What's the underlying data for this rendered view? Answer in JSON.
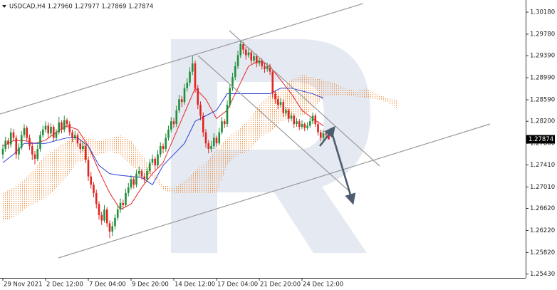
{
  "chart_data": {
    "type": "candlestick",
    "title": "USDCAD,H4  1.27960 1.27977 1.27869 1.27874",
    "up_color": "#1f8f3a",
    "down_color": "#e0241f",
    "ylim": [
      1.2536,
      1.304
    ],
    "yticks": [
      {
        "value": 1.3018,
        "label": "1.30180"
      },
      {
        "value": 1.2978,
        "label": "1.29780"
      },
      {
        "value": 1.2939,
        "label": "1.29390"
      },
      {
        "value": 1.2899,
        "label": "1.28990"
      },
      {
        "value": 1.2859,
        "label": "1.28590"
      },
      {
        "value": 1.282,
        "label": "1.28200"
      },
      {
        "value": 1.278,
        "label": "1.27800"
      },
      {
        "value": 1.2741,
        "label": "1.27410"
      },
      {
        "value": 1.2701,
        "label": "1.27010"
      },
      {
        "value": 1.2662,
        "label": "1.26620"
      },
      {
        "value": 1.2622,
        "label": "1.26220"
      },
      {
        "value": 1.2582,
        "label": "1.25820"
      },
      {
        "value": 1.2543,
        "label": "1.25430"
      }
    ],
    "last_price": {
      "value": 1.27874,
      "label": "1.27874"
    },
    "categories": [
      "29 Nov 2021",
      null,
      null,
      null,
      null,
      null,
      null,
      null,
      null,
      null,
      null,
      null,
      null,
      null,
      null,
      null,
      "2 Dec 12:00",
      null,
      null,
      null,
      null,
      null,
      null,
      null,
      null,
      null,
      null,
      null,
      null,
      null,
      null,
      null,
      "7 Dec 04:00",
      null,
      null,
      null,
      null,
      null,
      null,
      null,
      null,
      null,
      null,
      null,
      null,
      null,
      null,
      null,
      "9 Dec 20:00",
      null,
      null,
      null,
      null,
      null,
      null,
      null,
      null,
      null,
      null,
      null,
      null,
      null,
      null,
      null,
      "14 Dec 12:00",
      null,
      null,
      null,
      null,
      null,
      null,
      null,
      null,
      null,
      null,
      null,
      null,
      null,
      null,
      null,
      "17 Dec 04:00",
      null,
      null,
      null,
      null,
      null,
      null,
      null,
      null,
      null,
      null,
      null,
      null,
      null,
      null,
      null,
      "21 Dec 20:00",
      null,
      null,
      null,
      null,
      null,
      null,
      null,
      null,
      null,
      null,
      null,
      null,
      null,
      null,
      null,
      "24 Dec 12:00",
      null,
      null,
      null,
      null,
      null,
      null,
      null,
      null,
      null,
      null
    ],
    "ohlc": [
      [
        1.276,
        1.2778,
        1.2752,
        1.277
      ],
      [
        1.277,
        1.2792,
        1.2765,
        1.2785
      ],
      [
        1.2785,
        1.279,
        1.277,
        1.2778
      ],
      [
        1.2778,
        1.2808,
        1.2772,
        1.28
      ],
      [
        1.28,
        1.2806,
        1.2784,
        1.279
      ],
      [
        1.279,
        1.2795,
        1.2752,
        1.276
      ],
      [
        1.276,
        1.278,
        1.275,
        1.2772
      ],
      [
        1.2772,
        1.2802,
        1.2768,
        1.2795
      ],
      [
        1.2795,
        1.2815,
        1.279,
        1.2808
      ],
      [
        1.2808,
        1.2812,
        1.2784,
        1.279
      ],
      [
        1.279,
        1.2796,
        1.2768,
        1.2775
      ],
      [
        1.2775,
        1.278,
        1.275,
        1.276
      ],
      [
        1.276,
        1.2766,
        1.2742,
        1.2752
      ],
      [
        1.2752,
        1.2778,
        1.2748,
        1.277
      ],
      [
        1.277,
        1.2802,
        1.2765,
        1.2795
      ],
      [
        1.2795,
        1.2812,
        1.279,
        1.2805
      ],
      [
        1.2805,
        1.282,
        1.28,
        1.2812
      ],
      [
        1.2812,
        1.2818,
        1.279,
        1.2798
      ],
      [
        1.2798,
        1.2816,
        1.2792,
        1.281
      ],
      [
        1.281,
        1.2814,
        1.2784,
        1.279
      ],
      [
        1.279,
        1.2806,
        1.2785,
        1.28
      ],
      [
        1.28,
        1.2828,
        1.2796,
        1.2818
      ],
      [
        1.2818,
        1.2822,
        1.2798,
        1.2805
      ],
      [
        1.2805,
        1.283,
        1.28,
        1.2822
      ],
      [
        1.2822,
        1.2826,
        1.2808,
        1.2815
      ],
      [
        1.2815,
        1.282,
        1.2794,
        1.28
      ],
      [
        1.28,
        1.2805,
        1.2782,
        1.279
      ],
      [
        1.279,
        1.2802,
        1.2786,
        1.2795
      ],
      [
        1.2795,
        1.2799,
        1.2774,
        1.278
      ],
      [
        1.278,
        1.2786,
        1.2762,
        1.277
      ],
      [
        1.277,
        1.2784,
        1.2765,
        1.2775
      ],
      [
        1.2775,
        1.2778,
        1.2744,
        1.275
      ],
      [
        1.275,
        1.2755,
        1.2712,
        1.272
      ],
      [
        1.272,
        1.2728,
        1.2698,
        1.2705
      ],
      [
        1.2705,
        1.271,
        1.2682,
        1.269
      ],
      [
        1.269,
        1.2696,
        1.2662,
        1.267
      ],
      [
        1.267,
        1.2675,
        1.2642,
        1.265
      ],
      [
        1.265,
        1.2656,
        1.2632,
        1.264
      ],
      [
        1.264,
        1.2668,
        1.2636,
        1.266
      ],
      [
        1.266,
        1.2664,
        1.2628,
        1.2635
      ],
      [
        1.2635,
        1.264,
        1.2608,
        1.262
      ],
      [
        1.262,
        1.2638,
        1.2612,
        1.263
      ],
      [
        1.263,
        1.2652,
        1.2624,
        1.2645
      ],
      [
        1.2645,
        1.2668,
        1.264,
        1.266
      ],
      [
        1.266,
        1.268,
        1.2654,
        1.2672
      ],
      [
        1.2672,
        1.2678,
        1.266,
        1.2668
      ],
      [
        1.2668,
        1.2698,
        1.2664,
        1.269
      ],
      [
        1.269,
        1.2708,
        1.2684,
        1.27
      ],
      [
        1.27,
        1.2722,
        1.2696,
        1.2715
      ],
      [
        1.2715,
        1.272,
        1.2698,
        1.2705
      ],
      [
        1.2705,
        1.2732,
        1.27,
        1.2725
      ],
      [
        1.2725,
        1.2738,
        1.2718,
        1.273
      ],
      [
        1.273,
        1.2734,
        1.2714,
        1.272
      ],
      [
        1.272,
        1.2726,
        1.2708,
        1.2715
      ],
      [
        1.2715,
        1.2736,
        1.271,
        1.273
      ],
      [
        1.273,
        1.2752,
        1.2725,
        1.2745
      ],
      [
        1.2745,
        1.276,
        1.274,
        1.2752
      ],
      [
        1.2752,
        1.2756,
        1.2732,
        1.274
      ],
      [
        1.274,
        1.2768,
        1.2735,
        1.276
      ],
      [
        1.276,
        1.2782,
        1.2755,
        1.2775
      ],
      [
        1.2775,
        1.278,
        1.2762,
        1.277
      ],
      [
        1.277,
        1.2798,
        1.2765,
        1.279
      ],
      [
        1.279,
        1.2812,
        1.2785,
        1.2805
      ],
      [
        1.2805,
        1.2828,
        1.28,
        1.282
      ],
      [
        1.282,
        1.2826,
        1.2808,
        1.2815
      ],
      [
        1.2815,
        1.2848,
        1.281,
        1.284
      ],
      [
        1.284,
        1.2868,
        1.2835,
        1.286
      ],
      [
        1.286,
        1.2866,
        1.2846,
        1.2855
      ],
      [
        1.2855,
        1.2888,
        1.285,
        1.288
      ],
      [
        1.288,
        1.2898,
        1.2874,
        1.289
      ],
      [
        1.289,
        1.2918,
        1.2884,
        1.291
      ],
      [
        1.291,
        1.294,
        1.2904,
        1.2925
      ],
      [
        1.2925,
        1.293,
        1.2872,
        1.288
      ],
      [
        1.288,
        1.2886,
        1.2842,
        1.285
      ],
      [
        1.285,
        1.2856,
        1.2822,
        1.283
      ],
      [
        1.283,
        1.2836,
        1.2792,
        1.28
      ],
      [
        1.28,
        1.2806,
        1.2772,
        1.278
      ],
      [
        1.278,
        1.2786,
        1.2762,
        1.277
      ],
      [
        1.277,
        1.2784,
        1.2764,
        1.2775
      ],
      [
        1.2775,
        1.2798,
        1.277,
        1.279
      ],
      [
        1.279,
        1.2794,
        1.2774,
        1.278
      ],
      [
        1.278,
        1.2808,
        1.2776,
        1.28
      ],
      [
        1.28,
        1.2828,
        1.2796,
        1.282
      ],
      [
        1.282,
        1.2824,
        1.2808,
        1.2815
      ],
      [
        1.2815,
        1.2858,
        1.281,
        1.285
      ],
      [
        1.285,
        1.2888,
        1.2845,
        1.288
      ],
      [
        1.288,
        1.2908,
        1.2875,
        1.29
      ],
      [
        1.29,
        1.2928,
        1.2895,
        1.292
      ],
      [
        1.292,
        1.2948,
        1.2915,
        1.294
      ],
      [
        1.294,
        1.2966,
        1.2935,
        1.296
      ],
      [
        1.296,
        1.2964,
        1.2942,
        1.295
      ],
      [
        1.295,
        1.2955,
        1.2932,
        1.294
      ],
      [
        1.294,
        1.2952,
        1.2935,
        1.2945
      ],
      [
        1.2945,
        1.295,
        1.2924,
        1.293
      ],
      [
        1.293,
        1.2944,
        1.2926,
        1.2938
      ],
      [
        1.2938,
        1.2942,
        1.2918,
        1.2925
      ],
      [
        1.2925,
        1.2936,
        1.292,
        1.293
      ],
      [
        1.293,
        1.2934,
        1.2914,
        1.292
      ],
      [
        1.292,
        1.2925,
        1.2908,
        1.2915
      ],
      [
        1.2915,
        1.2926,
        1.291,
        1.292
      ],
      [
        1.292,
        1.2924,
        1.2904,
        1.291
      ],
      [
        1.291,
        1.2914,
        1.2862,
        1.287
      ],
      [
        1.287,
        1.2876,
        1.2852,
        1.286
      ],
      [
        1.286,
        1.2866,
        1.2842,
        1.285
      ],
      [
        1.285,
        1.2862,
        1.2845,
        1.2855
      ],
      [
        1.2855,
        1.286,
        1.2828,
        1.2835
      ],
      [
        1.2835,
        1.2846,
        1.283,
        1.284
      ],
      [
        1.284,
        1.2844,
        1.2818,
        1.2825
      ],
      [
        1.2825,
        1.2836,
        1.282,
        1.283
      ],
      [
        1.283,
        1.2834,
        1.2808,
        1.2815
      ],
      [
        1.2815,
        1.2826,
        1.281,
        1.282
      ],
      [
        1.282,
        1.2824,
        1.2804,
        1.281
      ],
      [
        1.281,
        1.2822,
        1.2806,
        1.2815
      ],
      [
        1.2815,
        1.2818,
        1.2802,
        1.2808
      ],
      [
        1.2808,
        1.2818,
        1.2804,
        1.2812
      ],
      [
        1.2812,
        1.2826,
        1.2808,
        1.282
      ],
      [
        1.282,
        1.2836,
        1.2815,
        1.283
      ],
      [
        1.283,
        1.2834,
        1.281,
        1.2815
      ],
      [
        1.2815,
        1.282,
        1.2794,
        1.28
      ],
      [
        1.28,
        1.2805,
        1.2784,
        1.279
      ],
      [
        1.279,
        1.2804,
        1.2786,
        1.2798
      ],
      [
        1.2798,
        1.2802,
        1.279,
        1.2796
      ],
      [
        1.2796,
        1.27977,
        1.27869,
        1.27874
      ]
    ],
    "lines": [
      {
        "color": "#e8262a",
        "x": [
          0,
          4,
          8,
          12,
          16,
          20,
          24,
          28,
          32,
          36,
          40,
          44,
          48,
          52,
          56,
          60,
          64,
          68,
          72,
          76,
          80,
          84,
          88,
          92,
          96,
          100,
          104,
          108,
          112,
          116,
          120
        ],
        "values": [
          1.2775,
          1.2785,
          1.2785,
          1.278,
          1.2786,
          1.28,
          1.2812,
          1.2805,
          1.2775,
          1.273,
          1.269,
          1.266,
          1.267,
          1.27,
          1.2725,
          1.2745,
          1.279,
          1.2835,
          1.288,
          1.286,
          1.2825,
          1.284,
          1.288,
          1.292,
          1.293,
          1.292,
          1.2895,
          1.287,
          1.284,
          1.2825,
          1.2812
        ]
      },
      {
        "color": "#2a3fd6",
        "x": [
          0,
          4,
          8,
          12,
          16,
          20,
          24,
          28,
          32,
          36,
          40,
          44,
          48,
          52,
          56,
          60,
          64,
          68,
          72,
          76,
          80,
          84,
          88,
          92,
          96,
          100,
          104,
          108,
          112,
          116,
          120
        ],
        "values": [
          1.2745,
          1.276,
          1.278,
          1.278,
          1.278,
          1.2785,
          1.279,
          1.279,
          1.2775,
          1.274,
          1.2725,
          1.2722,
          1.272,
          1.2718,
          1.2705,
          1.274,
          1.276,
          1.278,
          1.282,
          1.283,
          1.284,
          1.287,
          1.287,
          1.287,
          1.287,
          1.287,
          1.288,
          1.288,
          1.2875,
          1.287,
          1.2862
        ]
      }
    ],
    "cloud": {
      "color": "#f0954a",
      "x": [
        0,
        4,
        8,
        12,
        16,
        20,
        24,
        28,
        32,
        36,
        40,
        44,
        48,
        52,
        56,
        60,
        64,
        68,
        72,
        76,
        80,
        84,
        88,
        92,
        96,
        100,
        104,
        108,
        112,
        116,
        120,
        124,
        128,
        132,
        136,
        140,
        144,
        148
      ],
      "span_a": [
        1.269,
        1.27,
        1.2715,
        1.2735,
        1.276,
        1.277,
        1.2785,
        1.2795,
        1.279,
        1.2785,
        1.279,
        1.2795,
        1.2785,
        1.276,
        1.273,
        1.2705,
        1.27,
        1.2712,
        1.273,
        1.2745,
        1.277,
        1.279,
        1.2805,
        1.2822,
        1.285,
        1.287,
        1.2878,
        1.2895,
        1.2905,
        1.29,
        1.2895,
        1.289,
        1.288,
        1.2875,
        1.288,
        1.287,
        1.2862,
        1.2858
      ],
      "span_b": [
        1.264,
        1.2645,
        1.266,
        1.2672,
        1.268,
        1.27,
        1.272,
        1.2745,
        1.2752,
        1.276,
        1.2765,
        1.276,
        1.274,
        1.2725,
        1.272,
        1.2695,
        1.269,
        1.269,
        1.269,
        1.269,
        1.269,
        1.274,
        1.276,
        1.2765,
        1.279,
        1.28,
        1.282,
        1.2825,
        1.283,
        1.284,
        1.2865,
        1.2868,
        1.2868,
        1.2865,
        1.2862,
        1.286,
        1.2855,
        1.284
      ]
    }
  }
}
